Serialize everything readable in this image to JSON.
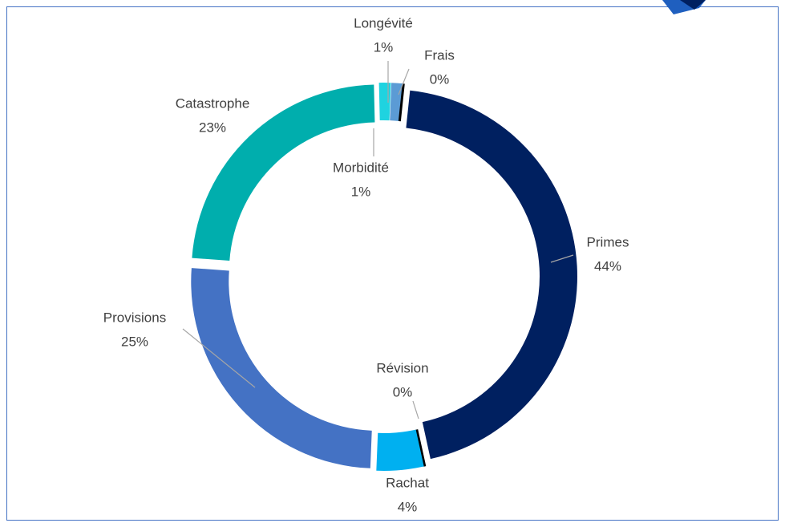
{
  "chart_data": {
    "type": "donut",
    "categories": [
      "Primes",
      "Révision",
      "Rachat",
      "Provisions",
      "Catastrophe",
      "Morbidité",
      "Longévité",
      "Frais"
    ],
    "values": [
      44,
      0,
      4,
      25,
      23,
      1,
      1,
      0
    ],
    "value_labels": [
      "44%",
      "0%",
      "4%",
      "25%",
      "23%",
      "1%",
      "1%",
      "0%"
    ],
    "colors": [
      "#002060",
      "#1f3864",
      "#00b0f0",
      "#4472c4",
      "#00aead",
      "#1fd3e0",
      "#5b9bd5",
      "#00b0a0"
    ]
  }
}
